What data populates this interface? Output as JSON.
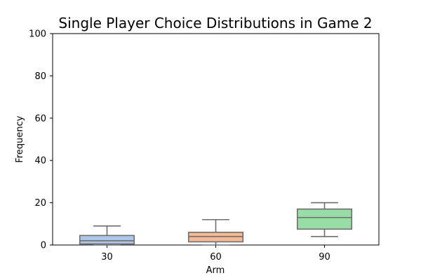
{
  "chart_data": {
    "type": "box",
    "title": "Single Player Choice Distributions in Game 2",
    "xlabel": "Arm",
    "ylabel": "Frequency",
    "ylim": [
      0,
      100
    ],
    "yticks": [
      0,
      20,
      40,
      60,
      80,
      100
    ],
    "categories": [
      "30",
      "60",
      "90"
    ],
    "boxes": [
      {
        "category": "30",
        "whisker_low": 0,
        "q1": 0.5,
        "median": 2,
        "q3": 4.5,
        "whisker_high": 9,
        "color": "#aec7e8"
      },
      {
        "category": "60",
        "whisker_low": 0,
        "q1": 1.5,
        "median": 4,
        "q3": 6,
        "whisker_high": 12,
        "color": "#f5b994"
      },
      {
        "category": "90",
        "whisker_low": 4,
        "q1": 7.5,
        "median": 13,
        "q3": 17,
        "whisker_high": 20,
        "color": "#98dca6"
      }
    ],
    "grid": false,
    "edge_color": "#6e6e6e"
  }
}
